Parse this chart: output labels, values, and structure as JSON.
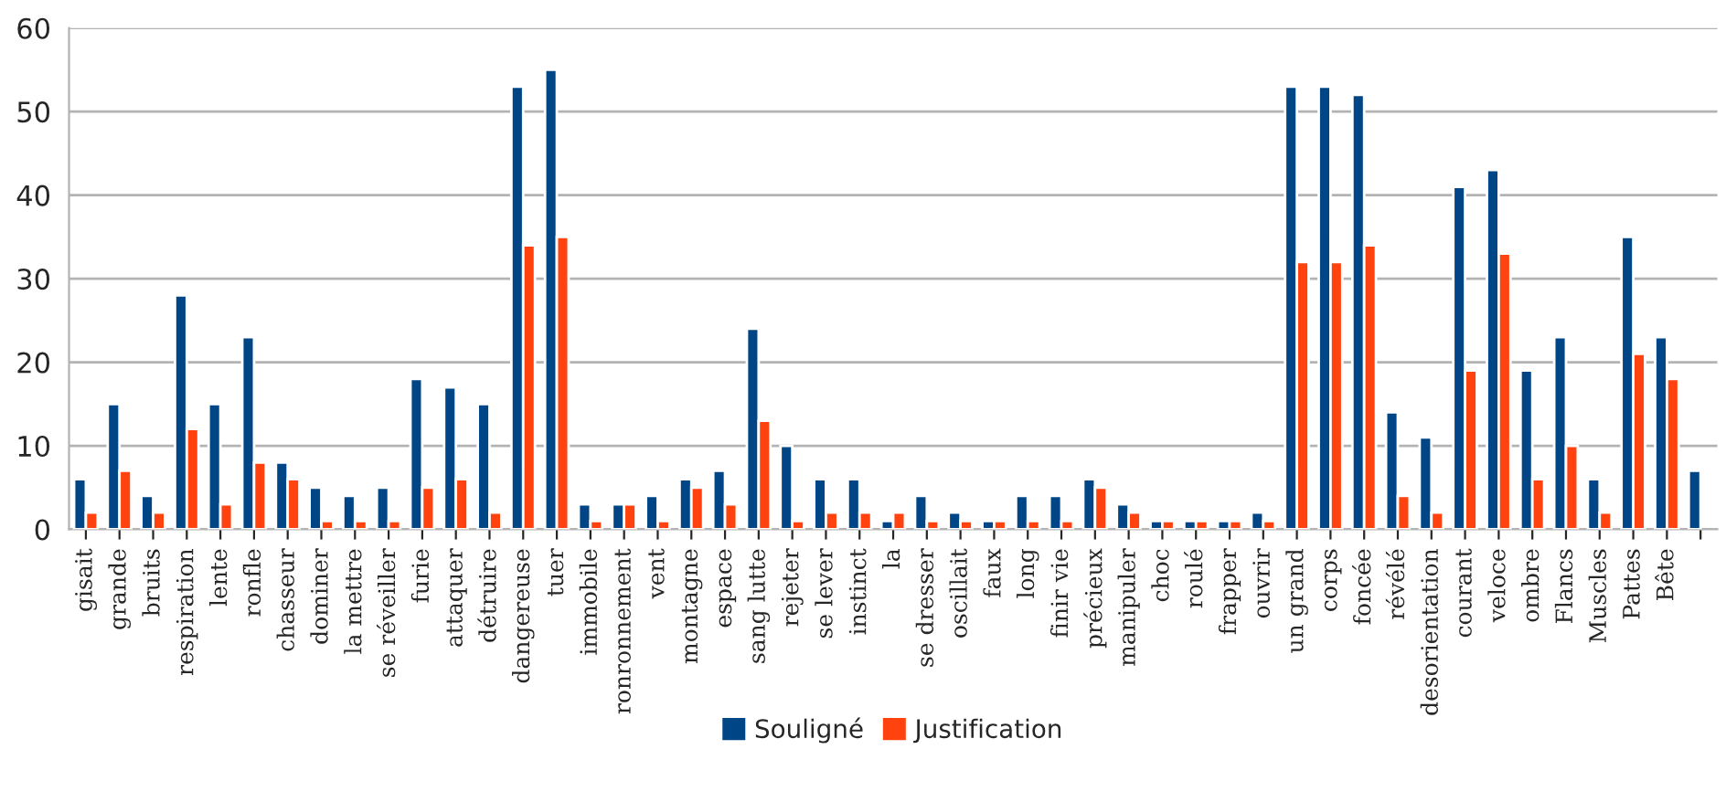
{
  "chart_data": {
    "type": "bar",
    "categories": [
      "gisait",
      "grande",
      "bruits",
      "respiration",
      "lente",
      "ronfle",
      "chasseur",
      "dominer",
      "la mettre",
      "se réveiller",
      "furie",
      "attaquer",
      "détruire",
      "dangereuse",
      "tuer",
      "immobile",
      "ronronnement",
      "vent",
      "montagne",
      "espace",
      "sang lutte",
      "rejeter",
      "se lever",
      "instinct",
      "la",
      "se dresser",
      "oscillait",
      "faux",
      "long",
      "finir vie",
      "précieux",
      "manipuler",
      "choc",
      "roulé",
      "frapper",
      "ouvrir",
      "un grand",
      "corps",
      "foncée",
      "révélé",
      "desorientation",
      "courant",
      "veloce",
      "ombre",
      "Flancs",
      "Muscles",
      "Pattes",
      "Bête",
      null
    ],
    "series": [
      {
        "name": "Souligné",
        "color": "#004586",
        "values": [
          6,
          15,
          4,
          28,
          15,
          23,
          8,
          5,
          4,
          5,
          18,
          17,
          15,
          53,
          55,
          3,
          3,
          4,
          6,
          7,
          24,
          10,
          6,
          6,
          1,
          4,
          2,
          1,
          4,
          4,
          6,
          3,
          1,
          1,
          1,
          2,
          53,
          53,
          52,
          14,
          11,
          41,
          43,
          19,
          23,
          6,
          35,
          23,
          7
        ]
      },
      {
        "name": "Justification",
        "color": "#ff420e",
        "values": [
          2,
          7,
          2,
          12,
          3,
          8,
          6,
          1,
          1,
          1,
          5,
          6,
          2,
          34,
          35,
          1,
          3,
          1,
          5,
          3,
          13,
          1,
          2,
          2,
          2,
          1,
          1,
          1,
          1,
          1,
          5,
          2,
          1,
          1,
          1,
          1,
          32,
          32,
          34,
          4,
          2,
          19,
          33,
          6,
          10,
          2,
          21,
          18,
          null
        ]
      }
    ],
    "ylim": [
      0,
      60
    ],
    "yticks": [
      0,
      10,
      20,
      30,
      40,
      50,
      60
    ],
    "grid": "y",
    "legend": "bottom"
  }
}
